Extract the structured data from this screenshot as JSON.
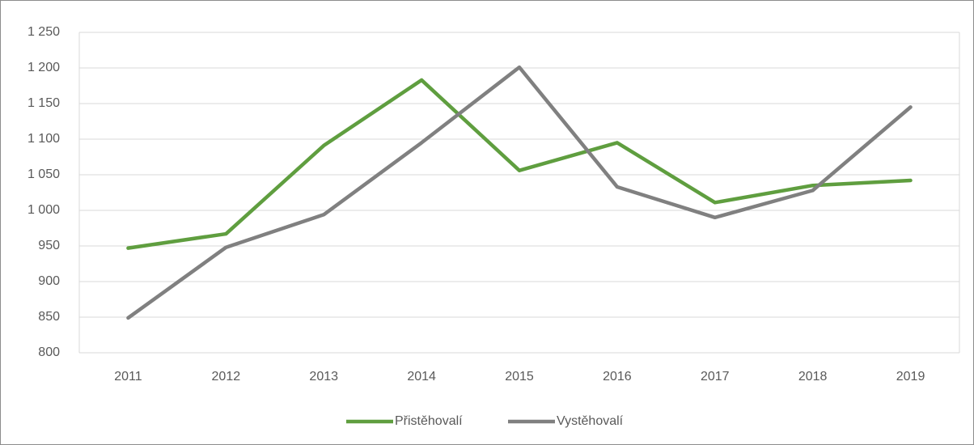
{
  "chart_data": {
    "type": "line",
    "categories": [
      "2011",
      "2012",
      "2013",
      "2014",
      "2015",
      "2016",
      "2017",
      "2018",
      "2019"
    ],
    "series": [
      {
        "name": "Přistěhovalí",
        "color": "#5f9e3f",
        "values": [
          947,
          967,
          1091,
          1183,
          1056,
          1095,
          1011,
          1035,
          1042
        ]
      },
      {
        "name": "Vystěhovalí",
        "color": "#808080",
        "values": [
          849,
          948,
          994,
          1095,
          1201,
          1033,
          990,
          1028,
          1145
        ]
      }
    ],
    "ylim": [
      800,
      1250
    ],
    "yticks": [
      800,
      850,
      900,
      950,
      {
        "value": 1000,
        "label": "1 000"
      },
      {
        "value": 1050,
        "label": "1 050"
      },
      {
        "value": 1100,
        "label": "1 100"
      },
      {
        "value": 1150,
        "label": "1 150"
      },
      {
        "value": 1200,
        "label": "1 200"
      },
      {
        "value": 1250,
        "label": "1 250"
      }
    ],
    "grid": true,
    "legend": "bottom"
  }
}
